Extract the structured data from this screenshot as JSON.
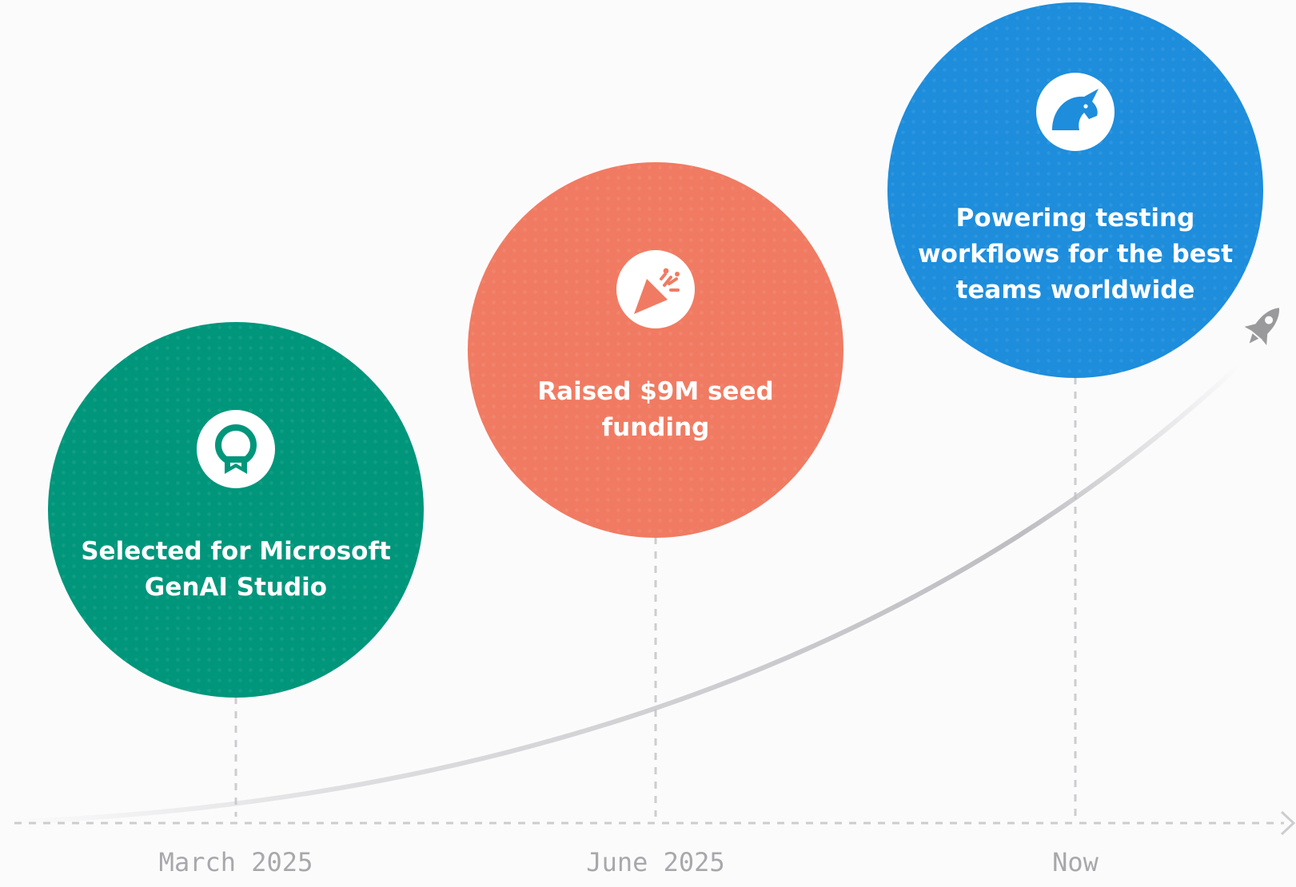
{
  "milestones": [
    {
      "text": "Selected for Microsoft GenAI Studio",
      "date": "March 2025",
      "color": "#00967b",
      "icon": "award-ribbon-icon"
    },
    {
      "text": "Raised $9M seed funding",
      "date": "June 2025",
      "color": "#f07b62",
      "icon": "party-popper-icon"
    },
    {
      "text": "Powering testing workflows for the best teams worldwide",
      "date": "Now",
      "color": "#1d8ddc",
      "icon": "unicorn-icon"
    }
  ],
  "end_marker_icon": "rocket-icon",
  "colors": {
    "axis": "#cdcdd1",
    "growth_curve": "#c5c5c9",
    "date_text": "#a8a8ac",
    "rocket": "#9a9a9d",
    "background": "#fcfbfc"
  }
}
